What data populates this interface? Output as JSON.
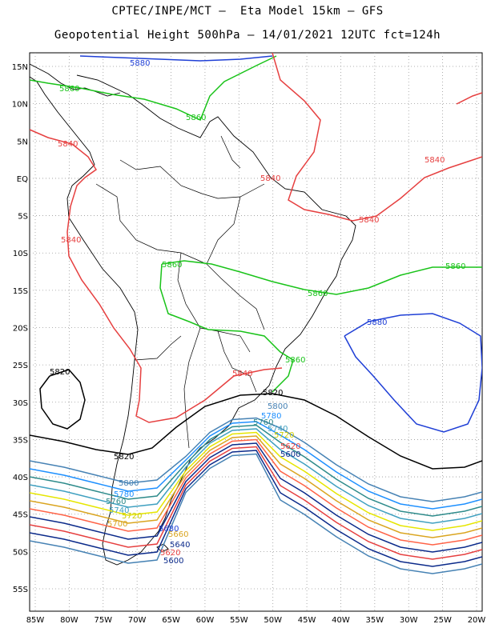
{
  "header": {
    "line1": "CPTEC/INPE/MCT –  Eta Model 15km – GFS",
    "line2": "Geopotential Height 500hPa – 14/01/2021 12UTC fct=124h"
  },
  "map": {
    "lat_labels": [
      "15N",
      "10N",
      "5N",
      "EQ",
      "5S",
      "10S",
      "15S",
      "20S",
      "25S",
      "30S",
      "35S",
      "40S",
      "45S",
      "50S",
      "55S"
    ],
    "lon_labels": [
      "85W",
      "80W",
      "75W",
      "70W",
      "65W",
      "60W",
      "55W",
      "50W",
      "45W",
      "40W",
      "35W",
      "30W",
      "25W",
      "20W"
    ]
  },
  "contours": [
    {
      "value": "5880",
      "color": "#1f3fd6"
    },
    {
      "value": "5860",
      "color": "#19c319"
    },
    {
      "value": "5840",
      "color": "#e64040"
    },
    {
      "value": "5820",
      "color": "#000000"
    },
    {
      "value": "5800",
      "color": "#4682b4"
    },
    {
      "value": "5780",
      "color": "#1e90ff"
    },
    {
      "value": "5760",
      "color": "#2e8b8b"
    },
    {
      "value": "5740",
      "color": "#40a0c0"
    },
    {
      "value": "5720",
      "color": "#e6e600"
    },
    {
      "value": "5700",
      "color": "#daa520"
    },
    {
      "value": "5680",
      "color": "#ff6347"
    },
    {
      "value": "5660",
      "color": "#0b2a8a"
    }
  ],
  "contour_labels": {
    "c5880_top": "5880",
    "c5860_top": "5860",
    "c5860_mid": "5860",
    "c5840_car": "5840",
    "c5840_atl": "5840",
    "c5840_eq": "5840",
    "c5840_ne": "5840",
    "c5840_pac": "5840",
    "c5860_bol": "5860",
    "c5860_br": "5860",
    "c5860_atl": "5860",
    "c5880_atl": "5880",
    "c5860_s": "5860",
    "c5840_s": "5840",
    "c5820_w": "5820",
    "c5820_c": "5820",
    "c5820_s": "5820",
    "c5800_a": "5800",
    "c5780_a": "5780",
    "c5760_a": "5760",
    "c5740_a": "5740",
    "c5720_a": "5720",
    "c5800_b": "5800",
    "c5780_b": "5780",
    "c5760_b": "5760",
    "c5740_b": "5740",
    "c5720_b": "5720",
    "c5700_b": "5700",
    "c5680_b": "5680",
    "c5660_b": "5660",
    "c5640_b": "5640",
    "c5620_b": "5620",
    "c5600_b": "5600",
    "c5620_c": "5620",
    "c5600_c": "5600"
  }
}
